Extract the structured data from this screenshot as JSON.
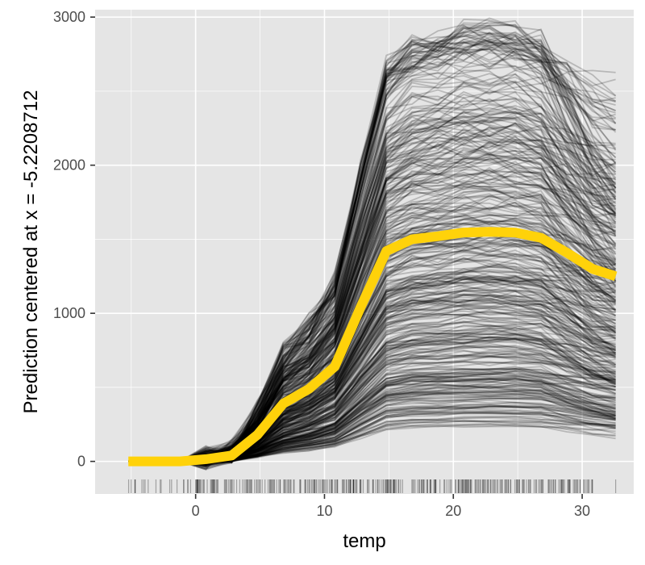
{
  "chart_data": {
    "type": "line",
    "title": "",
    "xlabel": "temp",
    "ylabel": "Prediction centered at x = -5.2208712",
    "xlim": [
      -7.8,
      34.0
    ],
    "ylim": [
      -220,
      3050
    ],
    "x_ticks": [
      0,
      10,
      20,
      30
    ],
    "y_ticks": [
      0,
      1000,
      2000,
      3000
    ],
    "grid": true,
    "legend": "none",
    "background_color": "#e5e5e5",
    "grid_color": "#ffffff",
    "ice_color": "#000000",
    "pdp_color": "#ffd20a",
    "rug_color": "#000000",
    "x": [
      -5.2208712,
      -3.2,
      -1.2,
      0.8,
      2.8,
      4.8,
      6.8,
      8.8,
      10.8,
      12.8,
      14.8,
      16.8,
      18.8,
      20.8,
      22.8,
      24.8,
      26.8,
      28.8,
      30.8,
      32.6
    ],
    "series": [
      {
        "values": [
          0,
          0,
          0,
          15,
          40,
          180,
          390,
          490,
          640,
          1040,
          1420,
          1500,
          1520,
          1545,
          1550,
          1545,
          1510,
          1410,
          1300,
          1250
        ]
      }
    ],
    "ice_curves_approx_count": 420,
    "rug_x_range": [
      -5.2,
      32.6
    ]
  }
}
